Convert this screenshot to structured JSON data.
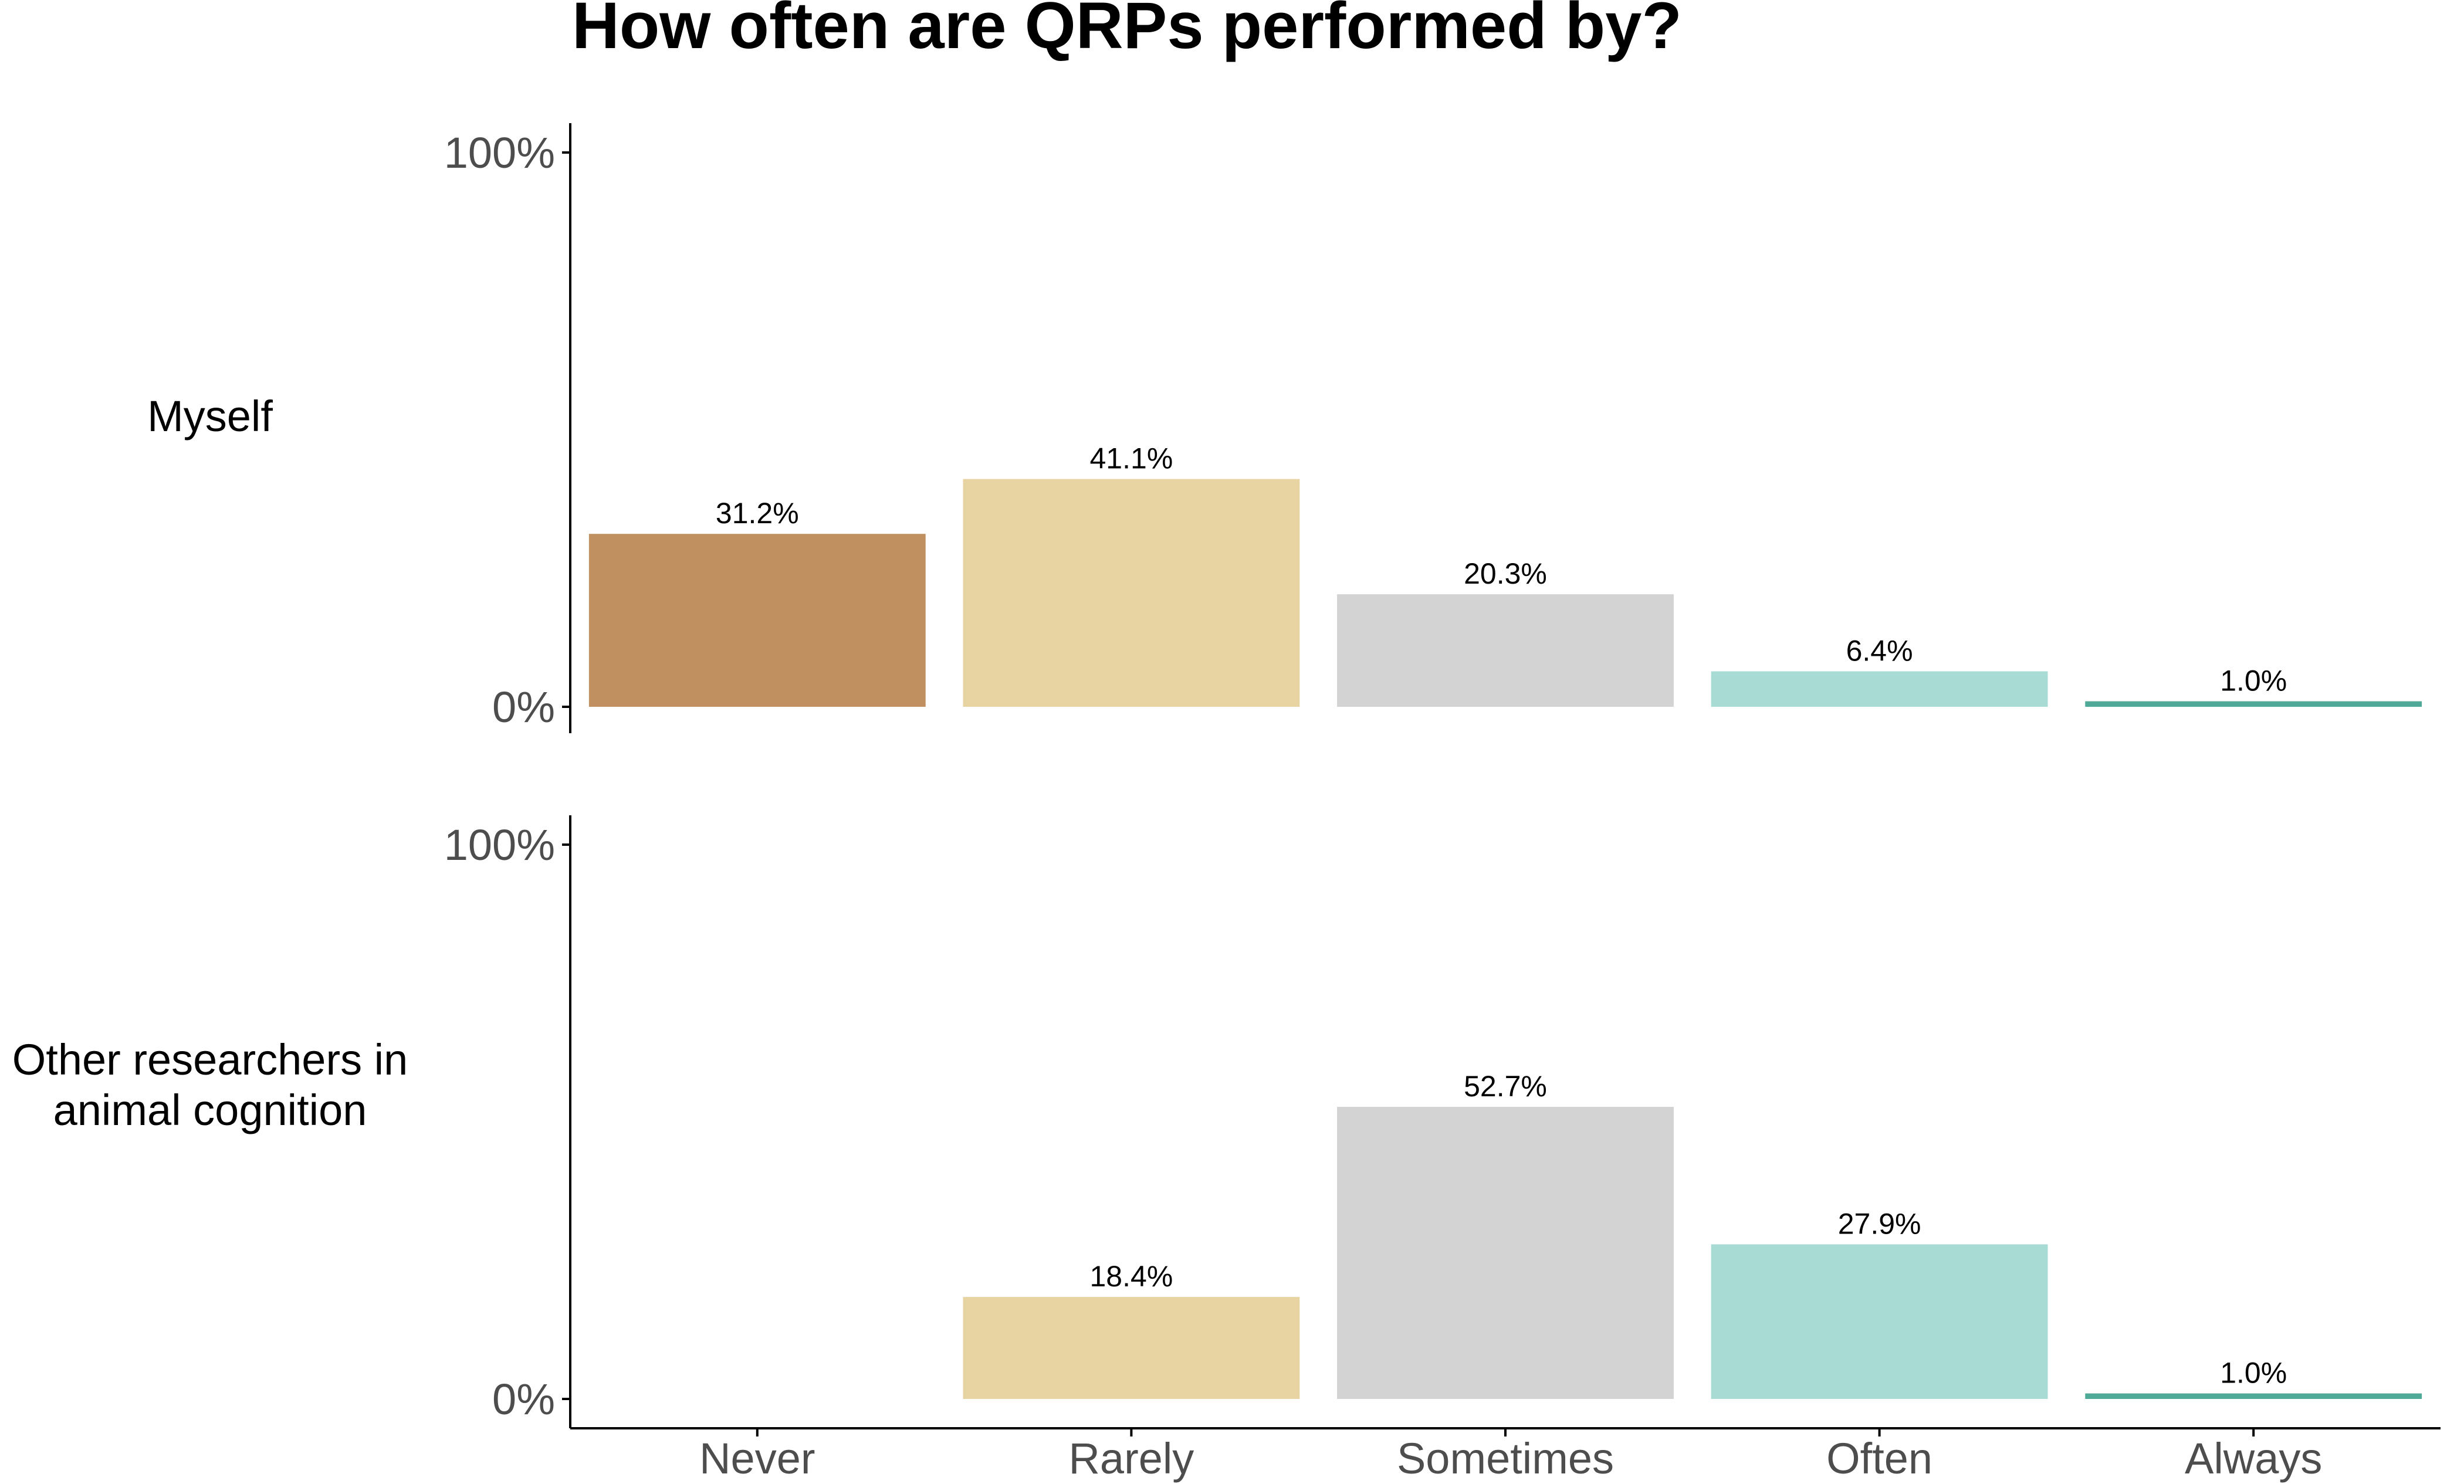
{
  "chart_data": {
    "type": "bar",
    "title": "How often are QRPs performed by?",
    "categories": [
      "Never",
      "Rarely",
      "Sometimes",
      "Often",
      "Always"
    ],
    "colors": [
      "#C09060",
      "#E8D4A2",
      "#D3D3D3",
      "#A7DBD3",
      "#4FAA98"
    ],
    "ylim": [
      0,
      100
    ],
    "yticks": [
      "0%",
      "100%"
    ],
    "grid": false,
    "legend": "none",
    "panels": [
      {
        "label": [
          "Myself"
        ],
        "values": [
          31.2,
          41.1,
          20.3,
          6.4,
          1.0
        ],
        "value_labels": [
          "31.2%",
          "41.1%",
          "20.3%",
          "6.4%",
          "1.0%"
        ]
      },
      {
        "label": [
          "Other researchers in",
          "animal cognition"
        ],
        "values": [
          0,
          18.4,
          52.7,
          27.9,
          1.0
        ],
        "value_labels": [
          "",
          "18.4%",
          "52.7%",
          "27.9%",
          "1.0%"
        ]
      }
    ]
  }
}
